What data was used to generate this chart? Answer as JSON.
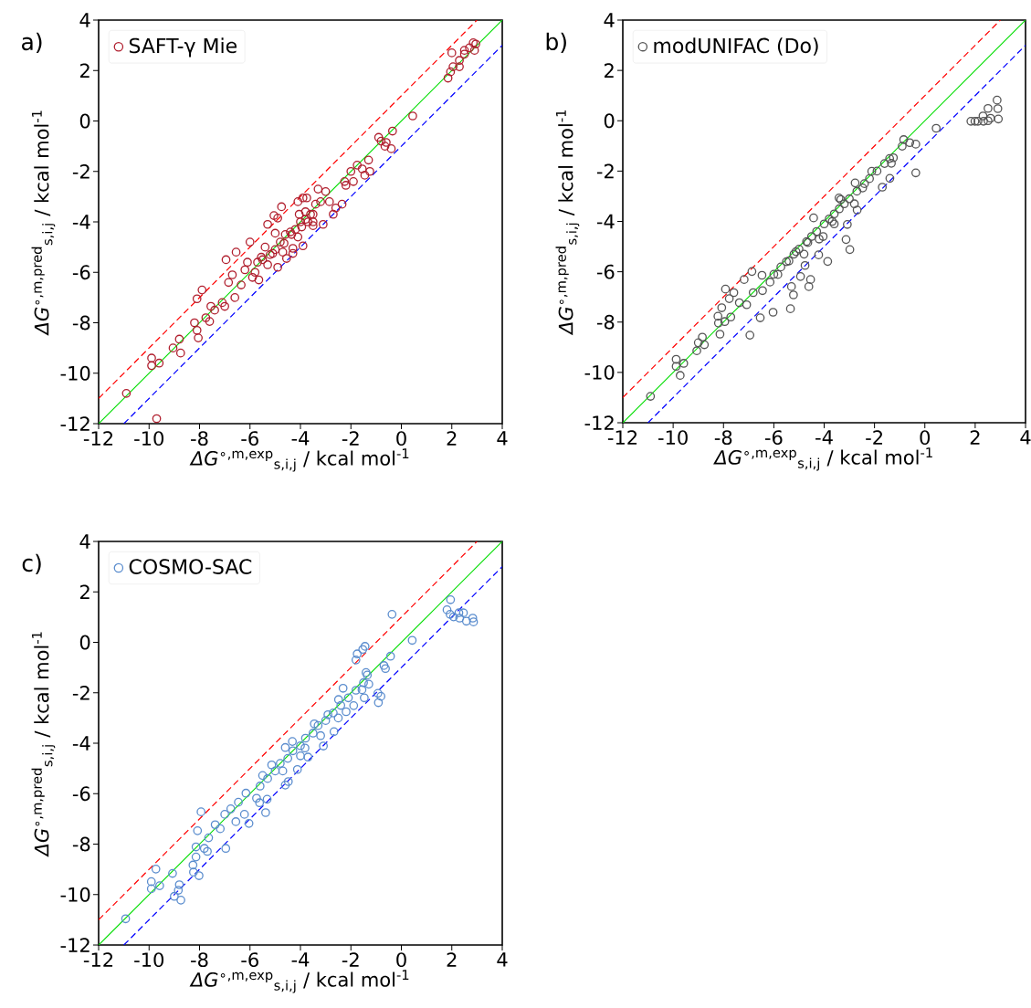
{
  "chart_data": [
    {
      "type": "scatter",
      "title": "a)",
      "xlabel": "*ΔG*$^{∘,m,exp}$$_{s,i,j}$ / kcal mol$^{-1}$",
      "ylabel": "*ΔG*$^{∘,m,pred}$$_{s,i,j}$ / kcal mol$^{-1}$",
      "xlim": [
        -12,
        4
      ],
      "ylim": [
        -12,
        4
      ],
      "xticks": [
        -12,
        -10,
        -8,
        -6,
        -4,
        -2,
        0,
        2,
        4
      ],
      "yticks": [
        -12,
        -10,
        -8,
        -6,
        -4,
        -2,
        0,
        2,
        4
      ],
      "legend": "top left",
      "series": [
        {
          "name": "SAFT-γ Mie",
          "marker": "circle",
          "color": "#b01f2e",
          "x": [
            -10.9,
            -9.7,
            -9.9,
            -9.9,
            -9.6,
            -9.05,
            -8.8,
            -8.75,
            -8.2,
            -8.1,
            -8.05,
            -8.1,
            -7.9,
            -7.55,
            -7.6,
            -7.75,
            -7.4,
            -7.1,
            -7.0,
            -6.95,
            -6.85,
            -6.6,
            -6.55,
            -6.7,
            -6.35,
            -6.2,
            -6.0,
            -6.1,
            -5.9,
            -5.7,
            -5.65,
            -5.55,
            -5.4,
            -5.3,
            -5.1,
            -5.05,
            -4.9,
            -5.0,
            -4.75,
            -4.9,
            -4.65,
            -4.55,
            -4.3,
            -4.35,
            -4.3,
            -4.05,
            -4.1,
            -3.9,
            -3.75,
            -3.95,
            -3.7,
            -3.5,
            -3.8,
            -3.9,
            -3.5,
            -3.3,
            -3.1,
            -3.0,
            -2.85,
            -2.6,
            -2.35,
            -2.7,
            -2.25,
            -2.2,
            -2.0,
            -1.9,
            -1.75,
            -1.55,
            -1.3,
            -1.25,
            -1.45,
            -0.9,
            -0.8,
            -0.6,
            -0.65,
            -0.4,
            -0.35,
            0.45,
            1.85,
            1.95,
            2.05,
            2.0,
            2.3,
            2.3,
            2.5,
            2.5,
            2.7,
            2.85,
            2.9,
            2.95,
            -5.5,
            -5.2,
            -5.0,
            -4.8,
            -4.6,
            -4.4,
            -4.2,
            -4.0,
            -3.8,
            -3.6,
            -3.4,
            -3.2,
            -5.8,
            -5.3,
            -4.7,
            -4.1,
            -3.5
          ],
          "values": [
            -10.8,
            -11.8,
            -9.4,
            -9.7,
            -9.6,
            -9.0,
            -8.65,
            -9.2,
            -8.0,
            -8.3,
            -8.6,
            -7.05,
            -6.7,
            -7.35,
            -7.95,
            -7.8,
            -7.5,
            -7.2,
            -7.35,
            -5.5,
            -6.4,
            -7.0,
            -5.2,
            -6.1,
            -6.5,
            -5.9,
            -4.8,
            -5.6,
            -6.2,
            -5.6,
            -6.3,
            -5.4,
            -5.0,
            -4.1,
            -5.25,
            -3.75,
            -3.85,
            -4.45,
            -3.4,
            -5.8,
            -4.85,
            -5.45,
            -5.05,
            -4.5,
            -5.25,
            -3.7,
            -3.2,
            -3.05,
            -3.05,
            -4.2,
            -4.0,
            -3.7,
            -3.6,
            -4.95,
            -4.15,
            -2.7,
            -4.1,
            -2.8,
            -3.2,
            -3.45,
            -3.3,
            -3.7,
            -2.4,
            -2.55,
            -2.0,
            -2.4,
            -1.75,
            -1.9,
            -1.55,
            -2.0,
            -2.15,
            -0.65,
            -0.8,
            -0.85,
            -1.0,
            -1.1,
            -0.4,
            0.2,
            1.7,
            1.95,
            2.15,
            2.7,
            2.15,
            2.4,
            2.65,
            2.8,
            2.9,
            3.1,
            2.8,
            3.05,
            -5.5,
            -5.3,
            -5.1,
            -4.8,
            -4.5,
            -4.4,
            -4.3,
            -4.0,
            -3.9,
            -3.7,
            -3.3,
            -3.2,
            -6.0,
            -5.7,
            -5.2,
            -4.6,
            -4.0
          ]
        },
        {
          "type": "line",
          "color": "#00dd00",
          "line_style": "solid",
          "x": [
            -12,
            4
          ],
          "values": [
            -12,
            4
          ]
        },
        {
          "type": "line",
          "color": "#ff0000",
          "line_style": "dashed",
          "x": [
            -12,
            3
          ],
          "values": [
            -11,
            4
          ]
        },
        {
          "type": "line",
          "color": "#0000ff",
          "line_style": "dashed",
          "x": [
            -11,
            4
          ],
          "values": [
            -12,
            3
          ]
        }
      ]
    },
    {
      "type": "scatter",
      "title": "b)",
      "xlabel": "*ΔG*$^{∘,m,exp}$$_{s,i,j}$ / kcal mol$^{-1}$",
      "ylabel": "*ΔG*$^{∘,m,pred}$$_{s,i,j}$ / kcal mol$^{-1}$",
      "xlim": [
        -12,
        4
      ],
      "ylim": [
        -12,
        4
      ],
      "xticks": [
        -12,
        -10,
        -8,
        -6,
        -4,
        -2,
        0,
        2,
        4
      ],
      "yticks": [
        -12,
        -10,
        -8,
        -6,
        -4,
        -2,
        0,
        2,
        4
      ],
      "legend": "top left",
      "series": [
        {
          "name": "modUNIFAC (Do)",
          "marker": "circle",
          "color": "#555555",
          "x": [
            -10.9,
            -9.88,
            -9.88,
            -9.58,
            -9.72,
            -9.06,
            -9.0,
            -8.84,
            -8.76,
            -8.22,
            -8.14,
            -8.07,
            -7.92,
            -8.2,
            -7.95,
            -7.71,
            -7.77,
            -7.59,
            -7.37,
            -7.08,
            -7.18,
            -6.95,
            -6.87,
            -6.82,
            -6.54,
            -6.47,
            -6.45,
            -6.15,
            -6.03,
            -5.84,
            -5.72,
            -5.34,
            -5.3,
            -5.22,
            -5.4,
            -5.12,
            -4.94,
            -4.76,
            -4.61,
            -4.54,
            -4.65,
            -4.42,
            -4.22,
            -3.86,
            -4.04,
            -3.68,
            -3.41,
            -3.34,
            -3.13,
            -2.98,
            -3.08,
            -2.69,
            -2.77,
            -2.47,
            -2.11,
            -1.69,
            -1.39,
            -1.33,
            -1.25,
            -0.84,
            -0.9,
            -0.6,
            -0.36,
            -0.36,
            0.45,
            1.83,
            1.99,
            2.11,
            2.31,
            2.33,
            2.51,
            2.51,
            2.61,
            2.87,
            2.9,
            2.92,
            -5.5,
            -5.2,
            -5.0,
            -4.7,
            -4.5,
            -4.3,
            -4.0,
            -3.8,
            -3.6,
            -3.4,
            -3.2,
            -3.0,
            -2.7,
            -2.4,
            -2.2,
            -1.9,
            -1.6,
            -1.4,
            -4.8,
            -4.2,
            -3.6,
            -2.8,
            -6.0
          ],
          "values": [
            -10.95,
            -9.48,
            -9.76,
            -9.64,
            -10.12,
            -9.14,
            -8.82,
            -8.6,
            -8.9,
            -7.77,
            -8.48,
            -7.43,
            -6.69,
            -8.04,
            -7.98,
            -7.8,
            -7.07,
            -6.83,
            -7.23,
            -7.31,
            -6.31,
            -8.52,
            -5.99,
            -6.83,
            -7.83,
            -6.14,
            -6.75,
            -6.41,
            -7.61,
            -6.11,
            -5.81,
            -7.47,
            -6.59,
            -6.92,
            -5.57,
            -5.2,
            -6.19,
            -5.75,
            -6.59,
            -6.31,
            -4.84,
            -3.86,
            -5.33,
            -5.59,
            -4.6,
            -4.0,
            -3.07,
            -3.13,
            -4.72,
            -5.12,
            -4.12,
            -3.55,
            -2.47,
            -2.67,
            -2.01,
            -2.64,
            -2.29,
            -1.69,
            -1.47,
            -0.75,
            -1.01,
            -0.87,
            -0.93,
            -2.07,
            -0.3,
            -0.02,
            -0.02,
            -0.02,
            0.19,
            -0.02,
            0.49,
            0.0,
            0.1,
            0.82,
            0.48,
            0.07,
            -5.6,
            -5.3,
            -5.1,
            -4.8,
            -4.6,
            -4.4,
            -4.1,
            -3.9,
            -3.7,
            -3.5,
            -3.3,
            -3.1,
            -2.8,
            -2.5,
            -2.3,
            -2.0,
            -1.7,
            -1.5,
            -5.3,
            -4.7,
            -4.1,
            -3.3,
            -6.1
          ]
        },
        {
          "type": "line",
          "color": "#00dd00",
          "line_style": "solid",
          "x": [
            -12,
            4
          ],
          "values": [
            -12,
            4
          ]
        },
        {
          "type": "line",
          "color": "#ff0000",
          "line_style": "dashed",
          "x": [
            -12,
            3
          ],
          "values": [
            -11,
            4
          ]
        },
        {
          "type": "line",
          "color": "#0000ff",
          "line_style": "dashed",
          "x": [
            -11,
            4
          ],
          "values": [
            -12,
            3
          ]
        }
      ]
    },
    {
      "type": "scatter",
      "title": "c)",
      "xlabel": "*ΔG*$^{∘,m,exp}$$_{s,i,j}$ / kcal mol$^{-1}$",
      "ylabel": "*ΔG*$^{∘,m,pred}$$_{s,i,j}$ / kcal mol$^{-1}$",
      "xlim": [
        -12,
        4
      ],
      "ylim": [
        -12,
        4
      ],
      "xticks": [
        -12,
        -10,
        -8,
        -6,
        -4,
        -2,
        0,
        2,
        4
      ],
      "yticks": [
        -12,
        -10,
        -8,
        -6,
        -4,
        -2,
        0,
        2,
        4
      ],
      "legend": "top left",
      "series": [
        {
          "name": "COSMO-SAC",
          "marker": "circle",
          "color": "#5b8dce",
          "x": [
            -10.93,
            -9.91,
            -9.91,
            -9.73,
            -9.58,
            -9.07,
            -9.0,
            -8.84,
            -8.8,
            -8.74,
            -8.26,
            -8.24,
            -8.14,
            -8.14,
            -8.02,
            -8.08,
            -7.94,
            -7.81,
            -7.69,
            -7.64,
            -7.38,
            -7.18,
            -6.96,
            -7.0,
            -6.76,
            -6.56,
            -6.46,
            -6.22,
            -6.16,
            -6.04,
            -5.74,
            -5.62,
            -5.38,
            -5.32,
            -5.5,
            -5.14,
            -4.6,
            -4.48,
            -4.6,
            -4.32,
            -4.12,
            -3.82,
            -3.7,
            -3.45,
            -3.09,
            -2.91,
            -2.67,
            -2.49,
            -2.31,
            -2.19,
            -1.89,
            -1.8,
            -1.75,
            -1.53,
            -1.44,
            -1.47,
            -1.56,
            -1.35,
            -1.29,
            -0.93,
            -0.91,
            -0.81,
            -0.69,
            -0.63,
            -0.43,
            -0.37,
            0.43,
            1.81,
            1.95,
            1.93,
            2.07,
            2.28,
            2.31,
            2.46,
            2.58,
            2.83,
            2.86,
            -5.6,
            -5.3,
            -5.0,
            -4.8,
            -4.5,
            -4.3,
            -4.0,
            -3.8,
            -3.5,
            -3.3,
            -3.0,
            -2.7,
            -2.4,
            -2.1,
            -1.8,
            -1.5,
            -1.4,
            -4.7,
            -4.0,
            -3.2,
            -2.5
          ],
          "values": [
            -10.96,
            -9.49,
            -9.77,
            -8.99,
            -9.65,
            -9.16,
            -10.07,
            -9.83,
            -9.61,
            -10.22,
            -8.83,
            -9.11,
            -8.51,
            -8.11,
            -9.25,
            -7.47,
            -6.72,
            -8.17,
            -8.29,
            -7.75,
            -7.23,
            -7.39,
            -8.17,
            -6.82,
            -6.6,
            -7.11,
            -6.34,
            -6.82,
            -5.98,
            -7.18,
            -6.18,
            -6.36,
            -6.75,
            -6.22,
            -5.28,
            -4.86,
            -5.66,
            -5.52,
            -4.17,
            -3.93,
            -5.04,
            -4.19,
            -4.55,
            -3.23,
            -4.11,
            -2.87,
            -3.54,
            -2.27,
            -1.82,
            -2.75,
            -2.51,
            -0.7,
            -0.46,
            -0.28,
            -0.16,
            -2.2,
            -1.88,
            -1.3,
            -1.66,
            -2.02,
            -2.39,
            -2.14,
            -0.92,
            -1.04,
            -0.55,
            1.11,
            0.08,
            1.29,
            1.69,
            1.11,
            1.01,
            1.17,
            0.96,
            1.17,
            0.84,
            0.96,
            0.81,
            -5.7,
            -5.4,
            -5.1,
            -4.8,
            -4.6,
            -4.3,
            -4.1,
            -3.8,
            -3.6,
            -3.3,
            -3.1,
            -2.8,
            -2.5,
            -2.2,
            -1.9,
            -1.6,
            -1.2,
            -5.1,
            -4.5,
            -3.7,
            -3.0
          ]
        },
        {
          "type": "line",
          "color": "#00dd00",
          "line_style": "solid",
          "x": [
            -12,
            4
          ],
          "values": [
            -12,
            4
          ]
        },
        {
          "type": "line",
          "color": "#ff0000",
          "line_style": "dashed",
          "x": [
            -12,
            3
          ],
          "values": [
            -11,
            4
          ]
        },
        {
          "type": "line",
          "color": "#0000ff",
          "line_style": "dashed",
          "x": [
            -11,
            4
          ],
          "values": [
            -12,
            3
          ]
        }
      ]
    }
  ]
}
